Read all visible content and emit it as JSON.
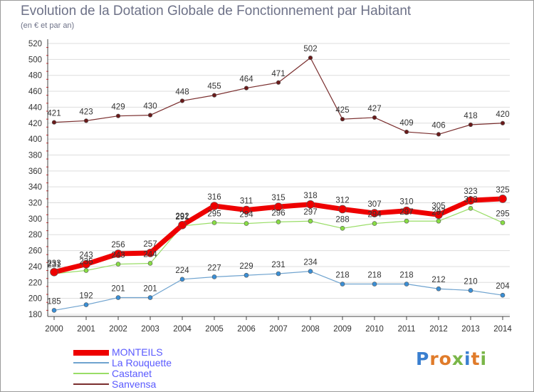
{
  "header": {
    "title": "Evolution de la Dotation Globale de Fonctionnement par Habitant",
    "subtitle": "(en € et par an)"
  },
  "logo": {
    "text": "Proxiti"
  },
  "colors": {
    "MONTEILS": "#ee0000",
    "La Rouquette": "#6fa3cf",
    "Castanet": "#99dd66",
    "Sanvensa": "#7a2e2e",
    "legend_text": "#5a5aff",
    "axis_text": "#333333",
    "grid": "#dddddd"
  },
  "chart_data": {
    "type": "line",
    "title": "Evolution de la Dotation Globale de Fonctionnement par Habitant",
    "subtitle": "(en € et par an)",
    "xlabel": "",
    "ylabel": "",
    "x": [
      2000,
      2001,
      2002,
      2003,
      2004,
      2005,
      2006,
      2007,
      2008,
      2009,
      2010,
      2011,
      2012,
      2013,
      2014
    ],
    "ylim": [
      180,
      520
    ],
    "yticks": [
      180,
      200,
      220,
      240,
      260,
      280,
      300,
      320,
      340,
      360,
      380,
      400,
      420,
      440,
      460,
      480,
      500,
      520
    ],
    "grid": "horizontal",
    "legend_position": "bottom-left",
    "series": [
      {
        "name": "MONTEILS",
        "values": [
          233,
          243,
          256,
          257,
          292,
          316,
          311,
          315,
          318,
          312,
          307,
          310,
          305,
          323,
          325
        ]
      },
      {
        "name": "La Rouquette",
        "values": [
          185,
          192,
          201,
          201,
          224,
          227,
          229,
          231,
          234,
          218,
          218,
          218,
          212,
          210,
          204
        ]
      },
      {
        "name": "Castanet",
        "values": [
          231,
          235,
          243,
          244,
          291,
          295,
          294,
          296,
          297,
          288,
          294,
          297,
          297,
          313,
          295
        ]
      },
      {
        "name": "Sanvensa",
        "values": [
          421,
          423,
          429,
          430,
          448,
          455,
          464,
          471,
          502,
          425,
          427,
          409,
          406,
          418,
          420
        ]
      }
    ]
  }
}
